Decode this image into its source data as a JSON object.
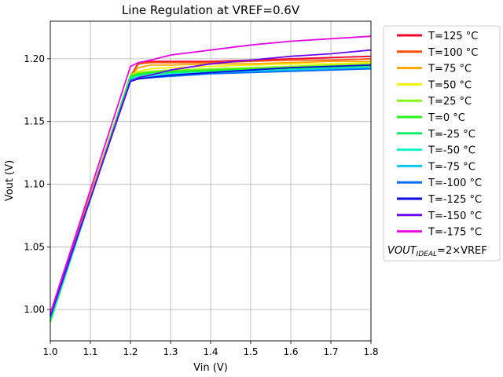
{
  "chart_data": {
    "type": "line",
    "title": "Line Regulation at VREF=0.6V",
    "xlabel": "Vin (V)",
    "ylabel": "Vout (V)",
    "xlim": [
      1.0,
      1.8
    ],
    "ylim": [
      0.975,
      1.23
    ],
    "xticks": [
      1.0,
      1.1,
      1.2,
      1.3,
      1.4,
      1.5,
      1.6,
      1.7,
      1.8
    ],
    "xtick_labels": [
      "1.0",
      "1.1",
      "1.2",
      "1.3",
      "1.4",
      "1.5",
      "1.6",
      "1.7",
      "1.8"
    ],
    "yticks": [
      1.0,
      1.05,
      1.1,
      1.15,
      1.2
    ],
    "ytick_labels": [
      "1.00",
      "1.05",
      "1.10",
      "1.15",
      "1.20"
    ],
    "grid": true,
    "legend_position": "outside-right",
    "legend_note_prefix": "VOUT",
    "legend_note_subscript": "IDEAL",
    "legend_note_suffix": "=2×VREF",
    "x": [
      1.0,
      1.2,
      1.22,
      1.25,
      1.3,
      1.4,
      1.5,
      1.6,
      1.7,
      1.8
    ],
    "series": [
      {
        "name": "T=125 °C",
        "color": "#f2072a",
        "values": [
          0.997,
          1.186,
          1.197,
          1.198,
          1.198,
          1.198,
          1.199,
          1.2,
          1.201,
          1.202
        ]
      },
      {
        "name": "T=100 °C",
        "color": "#ff4d0a",
        "values": [
          0.996,
          1.186,
          1.196,
          1.197,
          1.197,
          1.197,
          1.198,
          1.199,
          1.199,
          1.2
        ]
      },
      {
        "name": "T=75 °C",
        "color": "#ffa500",
        "values": [
          0.995,
          1.186,
          1.193,
          1.195,
          1.195,
          1.196,
          1.196,
          1.197,
          1.198,
          1.198
        ]
      },
      {
        "name": "T=50 °C",
        "color": "#f2f200",
        "values": [
          0.993,
          1.187,
          1.19,
          1.192,
          1.193,
          1.194,
          1.195,
          1.196,
          1.196,
          1.197
        ]
      },
      {
        "name": "T=25 °C",
        "color": "#88f21a",
        "values": [
          0.991,
          1.187,
          1.189,
          1.19,
          1.191,
          1.192,
          1.193,
          1.194,
          1.195,
          1.196
        ]
      },
      {
        "name": "T=0 °C",
        "color": "#26f21a",
        "values": [
          0.99,
          1.186,
          1.188,
          1.189,
          1.19,
          1.191,
          1.192,
          1.193,
          1.194,
          1.195
        ]
      },
      {
        "name": "T=-25 °C",
        "color": "#0af066",
        "values": [
          0.991,
          1.185,
          1.187,
          1.188,
          1.189,
          1.19,
          1.191,
          1.192,
          1.193,
          1.194
        ]
      },
      {
        "name": "T=-50 °C",
        "color": "#14f2c8",
        "values": [
          0.992,
          1.184,
          1.186,
          1.187,
          1.188,
          1.189,
          1.19,
          1.191,
          1.192,
          1.193
        ]
      },
      {
        "name": "T=-75 °C",
        "color": "#0ac8f2",
        "values": [
          0.993,
          1.183,
          1.185,
          1.186,
          1.187,
          1.189,
          1.19,
          1.191,
          1.192,
          1.193
        ]
      },
      {
        "name": "T=-100 °C",
        "color": "#0a6ef2",
        "values": [
          0.994,
          1.183,
          1.184,
          1.185,
          1.186,
          1.188,
          1.189,
          1.19,
          1.191,
          1.192
        ]
      },
      {
        "name": "T=-125 °C",
        "color": "#0a0ae6",
        "values": [
          0.995,
          1.182,
          1.184,
          1.185,
          1.187,
          1.189,
          1.191,
          1.193,
          1.194,
          1.195
        ]
      },
      {
        "name": "T=-150 °C",
        "color": "#6a0af2",
        "values": [
          0.996,
          1.182,
          1.185,
          1.187,
          1.191,
          1.196,
          1.199,
          1.202,
          1.204,
          1.207
        ]
      },
      {
        "name": "T=-175 °C",
        "color": "#e60ae6",
        "values": [
          0.997,
          1.194,
          1.197,
          1.199,
          1.203,
          1.207,
          1.211,
          1.214,
          1.216,
          1.218
        ]
      }
    ]
  }
}
